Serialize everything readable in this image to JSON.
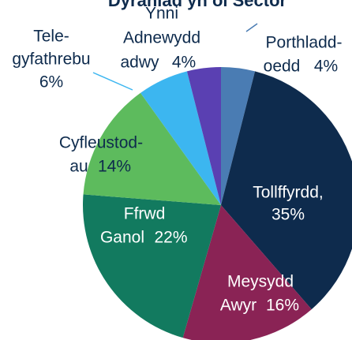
{
  "chart_data": {
    "type": "pie",
    "title": "Dyraniad yn ôl Sector",
    "categories": [
      "Porthladd-\noedd",
      "Tollffyrdd,",
      "Meysydd\nAwyr",
      "Ffrwd\nGanol",
      "Cyfleustod-\nau",
      "Tele-\ngyfathrebu",
      "Ynni\nAdnewydd\nadwy"
    ],
    "values": [
      4,
      35,
      16,
      22,
      14,
      6,
      4
    ],
    "value_labels": [
      "4%",
      "35%",
      "16%",
      "22%",
      "14%",
      "6%",
      "4%"
    ],
    "colors": [
      "#4a7cb3",
      "#0e2b4d",
      "#8a2355",
      "#127a5f",
      "#5dbb5d",
      "#3cb6f0",
      "#5a40b2"
    ]
  }
}
